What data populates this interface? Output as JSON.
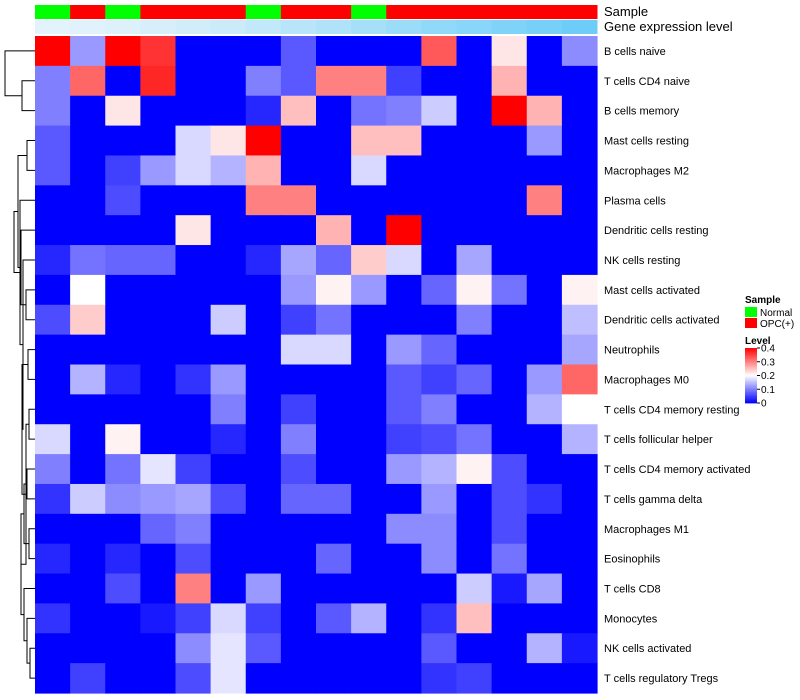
{
  "chart_data": {
    "type": "heatmap",
    "title": "",
    "annotations": {
      "sample_title": "Sample",
      "expression_title": "Gene expression level",
      "sample_groups": [
        "Normal",
        "OPC(+)",
        "Normal",
        "OPC(+)",
        "OPC(+)",
        "OPC(+)",
        "Normal",
        "OPC(+)",
        "OPC(+)",
        "Normal",
        "OPC(+)",
        "OPC(+)",
        "OPC(+)",
        "OPC(+)",
        "OPC(+)",
        "OPC(+)"
      ],
      "expression_levels": [
        0.02,
        0.04,
        0.06,
        0.1,
        0.14,
        0.18,
        0.24,
        0.3,
        0.36,
        0.42,
        0.5,
        0.56,
        0.62,
        0.68,
        0.74,
        0.8
      ]
    },
    "rows": [
      "B cells naive",
      "T cells CD4 naive",
      "B cells memory",
      "Mast cells resting",
      "Macrophages M2",
      "Plasma cells",
      "Dendritic cells resting",
      "NK cells resting",
      "Mast cells activated",
      "Dendritic cells activated",
      "Neutrophils",
      "Macrophages M0",
      "T cells CD4 memory resting",
      "T cells follicular helper",
      "T cells CD4 memory activated",
      "T cells gamma delta",
      "Macrophages M1",
      "Eosinophils",
      "T cells CD8",
      "Monocytes",
      "NK cells activated",
      "T cells regulatory  Tregs"
    ],
    "values": [
      [
        0.4,
        0.12,
        0.41,
        0.36,
        0,
        0,
        0,
        0.07,
        0,
        0,
        0,
        0.33,
        0,
        0.22,
        0,
        0.11
      ],
      [
        0.1,
        0.32,
        0,
        0.37,
        0,
        0,
        0.1,
        0.07,
        0.3,
        0.3,
        0.05,
        0,
        0,
        0.26,
        0,
        0
      ],
      [
        0.1,
        0,
        0.22,
        0,
        0,
        0,
        0.03,
        0.25,
        0,
        0.09,
        0.1,
        0.16,
        0,
        0.4,
        0.26,
        0
      ],
      [
        0.07,
        0,
        0,
        0,
        0.17,
        0.22,
        0.4,
        0,
        0,
        0.25,
        0.25,
        0,
        0,
        0,
        0.12,
        0
      ],
      [
        0.07,
        0,
        0.05,
        0.12,
        0.17,
        0.14,
        0.26,
        0,
        0,
        0.17,
        0,
        0,
        0,
        0,
        0,
        0
      ],
      [
        0,
        0,
        0.06,
        0,
        0,
        0,
        0.3,
        0.3,
        0,
        0,
        0,
        0,
        0,
        0,
        0.3,
        0
      ],
      [
        0,
        0,
        0,
        0,
        0.22,
        0,
        0,
        0,
        0.26,
        0,
        0.4,
        0,
        0,
        0,
        0,
        0
      ],
      [
        0.03,
        0.09,
        0.08,
        0.08,
        0,
        0,
        0.03,
        0.13,
        0.08,
        0.24,
        0.17,
        0,
        0.13,
        0,
        0,
        0
      ],
      [
        0,
        0.2,
        0,
        0,
        0,
        0,
        0,
        0.12,
        0.21,
        0.12,
        0,
        0.08,
        0.21,
        0.09,
        0,
        0.21
      ],
      [
        0.06,
        0.24,
        0,
        0,
        0,
        0.16,
        0,
        0.05,
        0.09,
        0,
        0,
        0,
        0.1,
        0,
        0,
        0.15
      ],
      [
        0,
        0,
        0,
        0,
        0,
        0,
        0,
        0.17,
        0.17,
        0,
        0.12,
        0.08,
        0,
        0,
        0,
        0.13
      ],
      [
        0,
        0.14,
        0.03,
        0,
        0.04,
        0.12,
        0,
        0,
        0,
        0,
        0.07,
        0.05,
        0.08,
        0,
        0.12,
        0.32
      ],
      [
        0,
        0,
        0,
        0,
        0,
        0.1,
        0,
        0.05,
        0,
        0,
        0.07,
        0.1,
        0,
        0,
        0.14,
        0.2
      ],
      [
        0.17,
        0,
        0.21,
        0,
        0,
        0.03,
        0,
        0.1,
        0,
        0,
        0.05,
        0.06,
        0.09,
        0,
        0,
        0.14
      ],
      [
        0.1,
        0,
        0.09,
        0.18,
        0.05,
        0,
        0,
        0.06,
        0,
        0,
        0.12,
        0.14,
        0.21,
        0.06,
        0,
        0
      ],
      [
        0.04,
        0.16,
        0.11,
        0.12,
        0.13,
        0.06,
        0,
        0.08,
        0.08,
        0,
        0,
        0.12,
        0,
        0.06,
        0.04,
        0
      ],
      [
        0,
        0,
        0,
        0.08,
        0.1,
        0,
        0,
        0,
        0,
        0,
        0.11,
        0.11,
        0,
        0.06,
        0,
        0
      ],
      [
        0.03,
        0,
        0.03,
        0,
        0.06,
        0,
        0,
        0,
        0.08,
        0,
        0,
        0.11,
        0,
        0.09,
        0,
        0
      ],
      [
        0,
        0,
        0.06,
        0,
        0.3,
        0,
        0.12,
        0,
        0,
        0,
        0,
        0,
        0.16,
        0.02,
        0.13,
        0
      ],
      [
        0.04,
        0,
        0,
        0.02,
        0.05,
        0.17,
        0.05,
        0,
        0.07,
        0.14,
        0,
        0.04,
        0.25,
        0,
        0,
        0
      ],
      [
        0,
        0,
        0,
        0,
        0.11,
        0.18,
        0.07,
        0,
        0,
        0,
        0,
        0.07,
        0,
        0,
        0.14,
        0.02
      ],
      [
        0,
        0.05,
        0,
        0,
        0.06,
        0.18,
        0,
        0,
        0,
        0,
        0,
        0.04,
        0.05,
        0,
        0,
        0
      ]
    ],
    "color_scale": {
      "min": 0,
      "mid": 0.2,
      "max": 0.4,
      "low": "#0000ff",
      "midColor": "#ffffff",
      "high": "#ff0000"
    },
    "legend": {
      "placement": "right",
      "sample_title": "Sample",
      "sample_entries": [
        {
          "label": "Normal",
          "color": "#00ff00"
        },
        {
          "label": "OPC(+)",
          "color": "#ff0000"
        }
      ],
      "level_title": "Level",
      "level_ticks": [
        0.4,
        0.3,
        0.2,
        0.1,
        0
      ],
      "level_tick_labels": [
        "0.4",
        "0.3",
        "0.2",
        "0.1",
        "0"
      ]
    },
    "colors": {
      "normal": "#00ff00",
      "opc": "#ff0000",
      "expr_low": "#e6f4fb",
      "expr_high": "#4fc3f7"
    }
  }
}
